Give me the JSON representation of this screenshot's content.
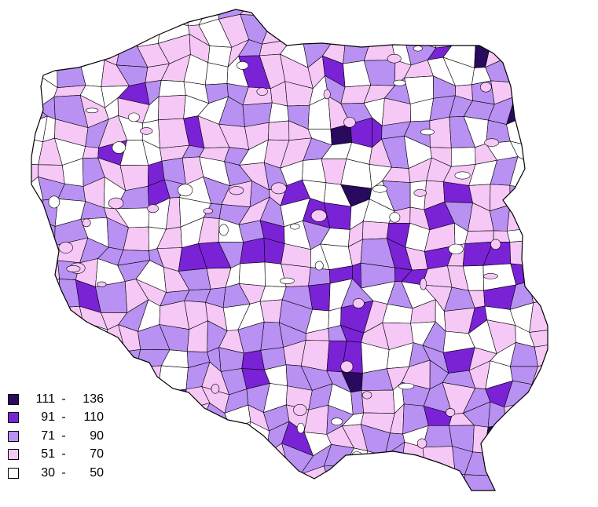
{
  "legend": {
    "classes": [
      {
        "low": "111",
        "high": "136",
        "color": "#2a0a5e"
      },
      {
        "low": "91",
        "high": "110",
        "color": "#7a22d6"
      },
      {
        "low": "71",
        "high": "90",
        "color": "#b891f2"
      },
      {
        "low": "51",
        "high": "70",
        "color": "#f6c8f6"
      },
      {
        "low": "30",
        "high": "50",
        "color": "#ffffff"
      }
    ],
    "separator": "-"
  },
  "map": {
    "country": "Poland",
    "boundary_color": "#000000"
  }
}
